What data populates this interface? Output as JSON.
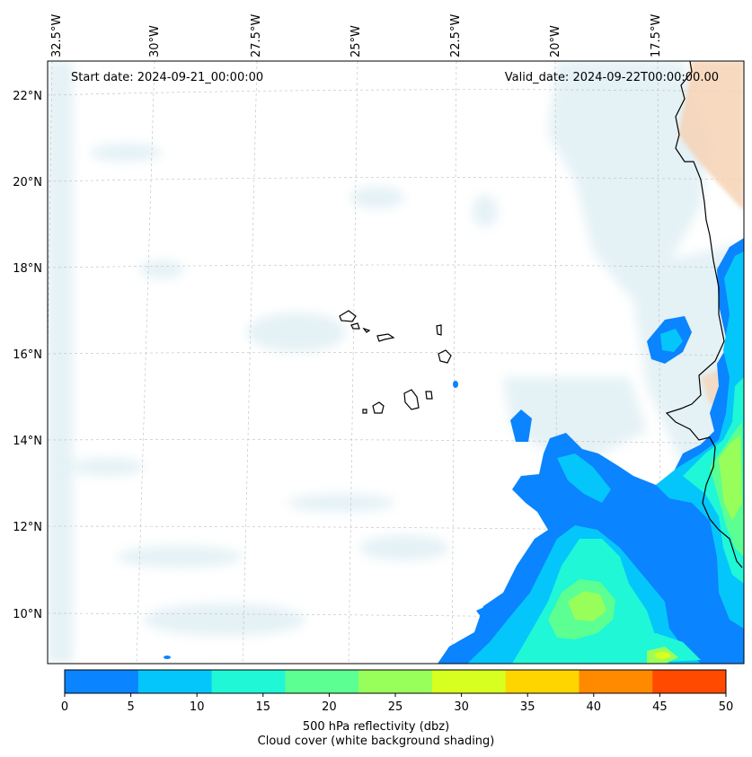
{
  "map": {
    "start_date_text": "Start date: 2024-09-21_00:00:00",
    "valid_date_text": "Valid_date: 2024-09-22T00:00:00.00",
    "lon_labels": [
      "32.5°W",
      "30°W",
      "27.5°W",
      "25°W",
      "22.5°W",
      "20°W",
      "17.5°W"
    ],
    "lat_labels": [
      "22°N",
      "20°N",
      "18°N",
      "16°N",
      "14°N",
      "12°N",
      "10°N"
    ],
    "gridlines": true,
    "colors": {
      "coastline": "#000000",
      "cloud": "#cfe6ee",
      "land_shading": "#f6d2b4"
    }
  },
  "colorbar": {
    "ticks": [
      "0",
      "5",
      "10",
      "15",
      "20",
      "25",
      "30",
      "35",
      "40",
      "45",
      "50"
    ],
    "colors": [
      "#0a84ff",
      "#05c6fa",
      "#1ff7d6",
      "#5cff91",
      "#98ff5a",
      "#d7ff1f",
      "#ffd500",
      "#ff8a00",
      "#ff4a00"
    ],
    "label_line1": "500 hPa reflectivity (dbz)",
    "label_line2": "Cloud cover (white background shading)"
  }
}
